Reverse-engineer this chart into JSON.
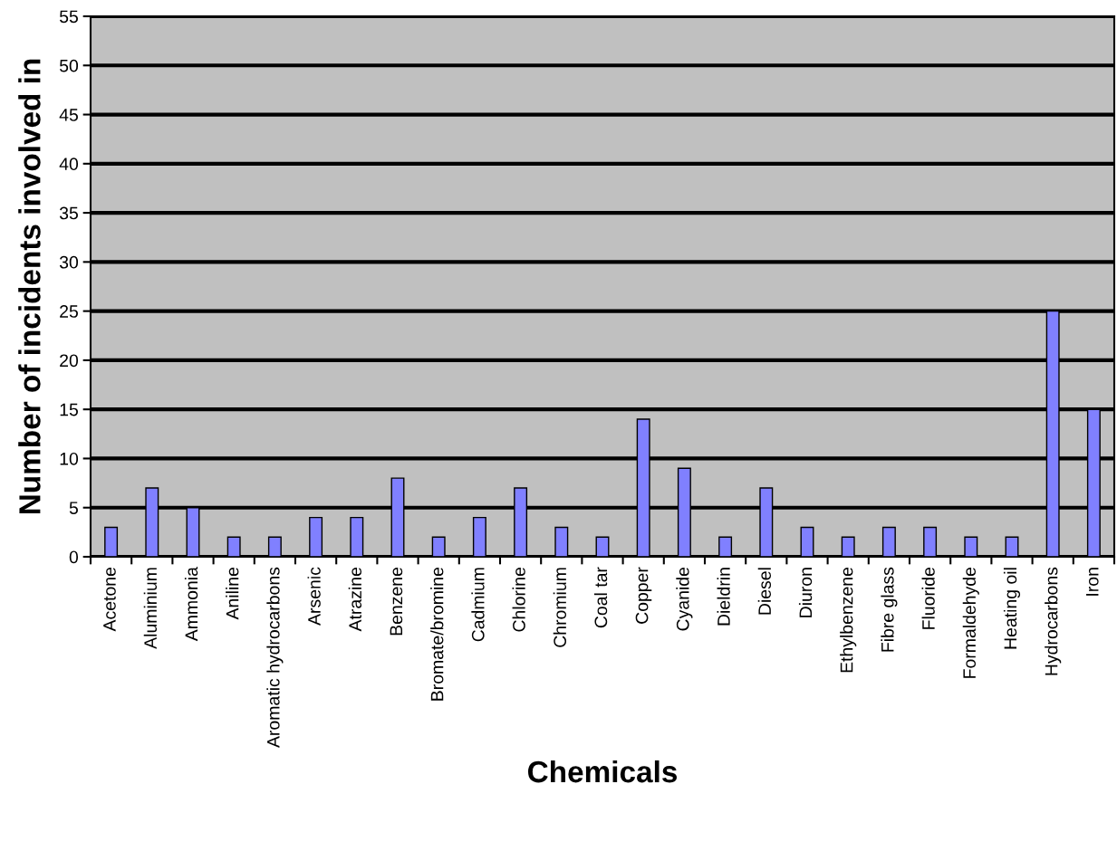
{
  "chart_data": {
    "type": "bar",
    "xlabel": "Chemicals",
    "ylabel": "Number of incidents involved in",
    "categories": [
      "Acetone",
      "Aluminium",
      "Ammonia",
      "Aniline",
      "Aromatic hydrocarbons",
      "Arsenic",
      "Atrazine",
      "Benzene",
      "Bromate/bromine",
      "Cadmium",
      "Chlorine",
      "Chromium",
      "Coal tar",
      "Copper",
      "Cyanide",
      "Dieldrin",
      "Diesel",
      "Diuron",
      "Ethylbenzene",
      "Fibre glass",
      "Fluoride",
      "Formaldehyde",
      "Heating oil",
      "Hydrocarbons",
      "Iron"
    ],
    "values": [
      3,
      7,
      5,
      2,
      2,
      4,
      4,
      8,
      2,
      4,
      7,
      3,
      2,
      14,
      9,
      2,
      7,
      3,
      2,
      3,
      3,
      2,
      2,
      25,
      15
    ],
    "color": "#8080ff",
    "ylim": [
      0,
      55
    ],
    "yticks": [
      0,
      5,
      10,
      15,
      20,
      25,
      30,
      35,
      40,
      45,
      50,
      55
    ],
    "grid": "y",
    "legend": false
  }
}
